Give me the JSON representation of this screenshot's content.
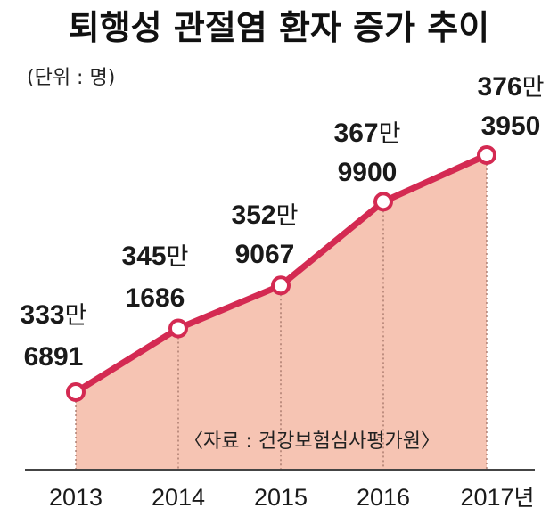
{
  "chart_data": {
    "type": "area",
    "title": "퇴행성 관절염 환자 증가 추이",
    "unit_label": "(단위 : 명)",
    "categories": [
      "2013",
      "2014",
      "2015",
      "2016",
      "2017"
    ],
    "x_unit": "년",
    "values": [
      3336891,
      3451686,
      3529067,
      3679900,
      3763950
    ],
    "data_labels": [
      {
        "man": "333",
        "rest": "6891"
      },
      {
        "man": "345",
        "rest": "1686"
      },
      {
        "man": "352",
        "rest": "9067"
      },
      {
        "man": "367",
        "rest": "9900"
      },
      {
        "man": "376",
        "rest": "3950"
      }
    ],
    "man_unit": "만",
    "ylim": [
      3000000,
      3900000
    ],
    "source": "〈자료 : 건강보험심사평가원〉",
    "grid": false,
    "colors": {
      "line": "#d42a52",
      "area": "#f6c4b3",
      "marker_fill": "#ffffff"
    }
  }
}
